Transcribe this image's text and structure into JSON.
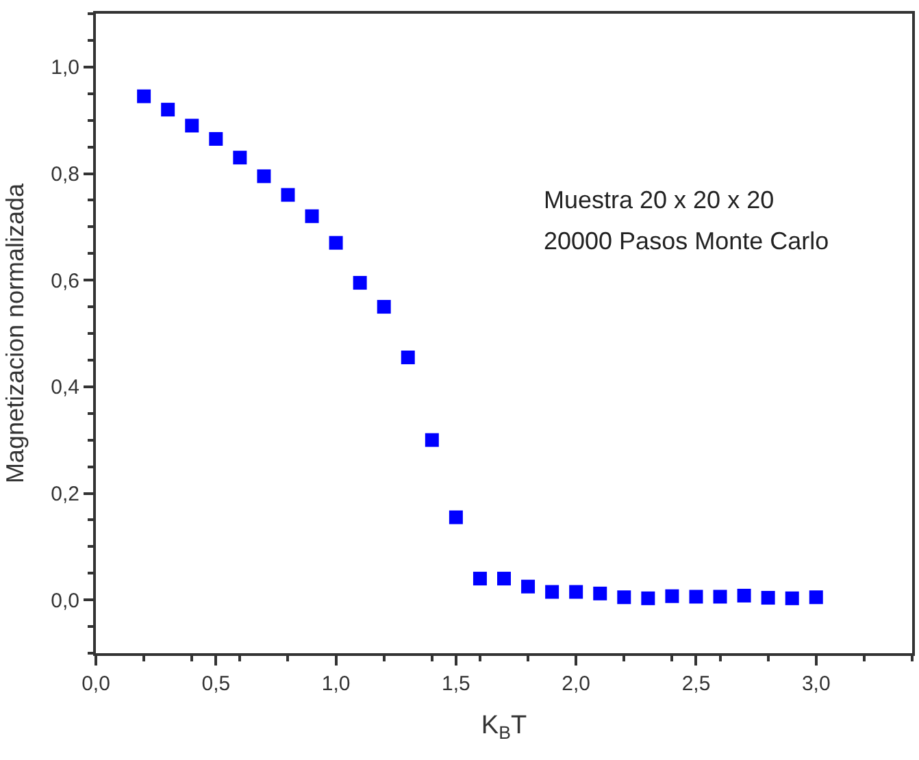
{
  "chart_data": {
    "type": "scatter",
    "xlabel": "K$_{B}$T",
    "ylabel": "Magnetizacion normalizada",
    "annotations": [
      "Muestra 20 x 20 x 20",
      "20000 Pasos Monte Carlo"
    ],
    "x": [
      0.2,
      0.3,
      0.4,
      0.5,
      0.6,
      0.7,
      0.8,
      0.9,
      1.0,
      1.1,
      1.2,
      1.3,
      1.4,
      1.5,
      1.6,
      1.7,
      1.8,
      1.9,
      2.0,
      2.1,
      2.2,
      2.3,
      2.4,
      2.5,
      2.6,
      2.7,
      2.8,
      2.9,
      3.0
    ],
    "series": [
      {
        "color": "#0000ff",
        "values": [
          0.945,
          0.92,
          0.89,
          0.865,
          0.83,
          0.795,
          0.76,
          0.72,
          0.67,
          0.595,
          0.55,
          0.455,
          0.3,
          0.155,
          0.04,
          0.04,
          0.025,
          0.015,
          0.015,
          0.012,
          0.005,
          0.003,
          0.007,
          0.006,
          0.006,
          0.008,
          0.004,
          0.003,
          0.005
        ]
      }
    ],
    "xlim": [
      0,
      3.4
    ],
    "ylim": [
      -0.1,
      1.1
    ],
    "xticks": [
      {
        "value": 0,
        "label": "0,0"
      },
      {
        "value": 0.5,
        "label": "0,5"
      },
      {
        "value": 1,
        "label": "1,0"
      },
      {
        "value": 1.5,
        "label": "1,5"
      },
      {
        "value": 2,
        "label": "2,0"
      },
      {
        "value": 2.5,
        "label": "2,5"
      },
      {
        "value": 3,
        "label": "3,0"
      }
    ],
    "yticks": [
      {
        "value": 0,
        "label": "0,0"
      },
      {
        "value": 0.2,
        "label": "0,2"
      },
      {
        "value": 0.4,
        "label": "0,4"
      },
      {
        "value": 0.6,
        "label": "0,6"
      },
      {
        "value": 0.8,
        "label": "0,8"
      },
      {
        "value": 1,
        "label": "1,0"
      }
    ],
    "marker": "square",
    "legend": false
  }
}
